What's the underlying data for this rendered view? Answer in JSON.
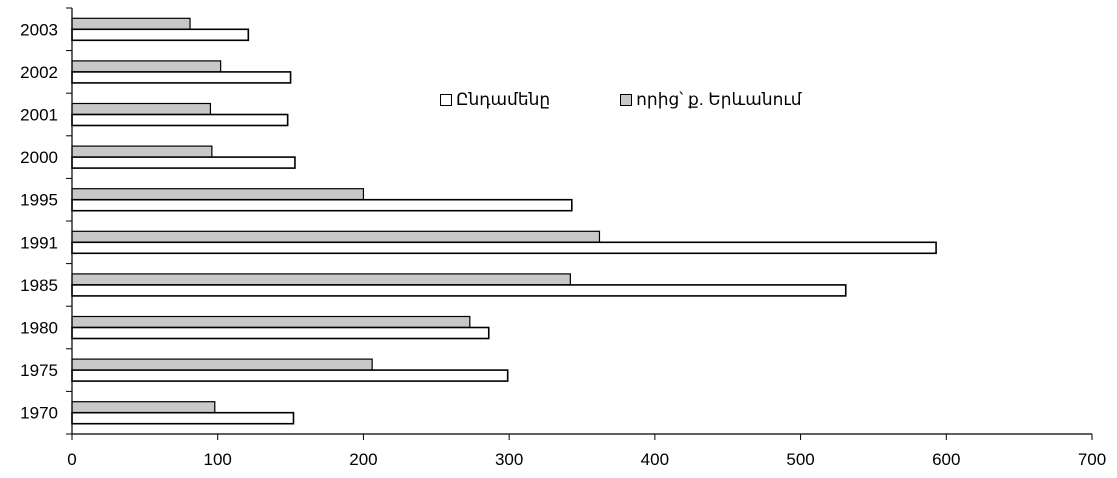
{
  "chart_data": {
    "type": "bar",
    "orientation": "horizontal",
    "categories": [
      "1970",
      "1975",
      "1980",
      "1985",
      "1991",
      "1995",
      "2000",
      "2001",
      "2002",
      "2003"
    ],
    "series": [
      {
        "name": "Ընդամենը",
        "values": [
          152,
          299,
          286,
          531,
          593,
          343,
          153,
          148,
          150,
          121
        ],
        "color": "#ffffff"
      },
      {
        "name": "որից՝ ք. Երևանում",
        "values": [
          98,
          206,
          273,
          342,
          362,
          200,
          96,
          95,
          102,
          81
        ],
        "color": "#c8c8c8"
      }
    ],
    "xlim": [
      0,
      700
    ],
    "xticks": [
      "0",
      "100",
      "200",
      "300",
      "400",
      "500",
      "600",
      "700"
    ],
    "grid": false,
    "legend_position": "top-center"
  }
}
